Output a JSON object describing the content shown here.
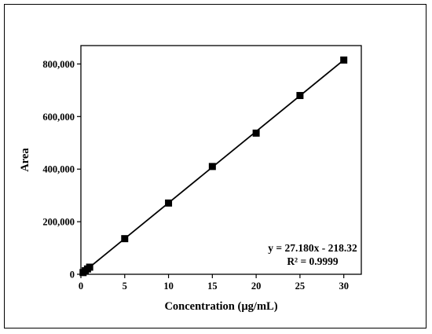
{
  "chart_data": {
    "type": "scatter",
    "title": "",
    "xlabel": "Concentration (µg/mL)",
    "ylabel": "Area",
    "xlim": [
      0,
      32
    ],
    "ylim": [
      0,
      870000
    ],
    "x_ticks": [
      0,
      5,
      10,
      15,
      20,
      25,
      30
    ],
    "x_tick_labels": [
      "0",
      "5",
      "10",
      "15",
      "20",
      "25",
      "30"
    ],
    "y_ticks": [
      0,
      200000,
      400000,
      600000,
      800000
    ],
    "y_tick_labels": [
      "0",
      "200,000",
      "400,000",
      "600,000",
      "800,000"
    ],
    "grid": false,
    "legend": "none",
    "marker": "square",
    "marker_color": "#000000",
    "line_color": "#000000",
    "series": [
      {
        "x": [
          0.25,
          0.5,
          0.75,
          1,
          5,
          10,
          15,
          20,
          25,
          30
        ],
        "y": [
          6500,
          13400,
          20200,
          27000,
          135500,
          271000,
          410000,
          537000,
          680000,
          815000
        ]
      }
    ],
    "trendline": {
      "slope": 27180,
      "intercept": -218.32,
      "x_range": [
        0.25,
        30
      ]
    },
    "annotations": [
      "y = 27.180x - 218.32",
      "R² = 0.9999"
    ]
  }
}
